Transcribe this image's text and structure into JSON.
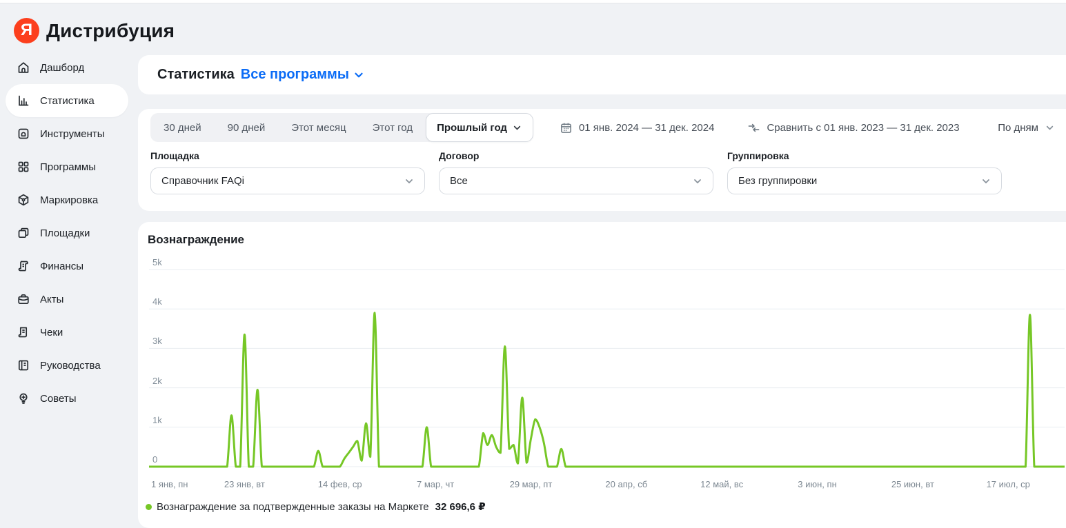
{
  "header": {
    "logo_letter": "Я",
    "title": "Дистрибуция"
  },
  "colors": {
    "brand_red": "#fc3f1d",
    "accent_blue": "#0b6cf6",
    "series_green": "#76c726",
    "card_bg": "#ffffff",
    "page_bg": "#f0f2f5"
  },
  "icons": {
    "logo": "yandex-logo",
    "sidebar": [
      "home-icon",
      "bar-chart-icon",
      "tools-icon",
      "grid-icon",
      "package-icon",
      "stack-icon",
      "scroll-icon",
      "briefcase-icon",
      "receipt-icon",
      "book-icon",
      "lightbulb-icon"
    ],
    "controls": [
      "chevron-down-icon",
      "calendar-icon",
      "compare-arrows-icon"
    ],
    "legend": "series-dot"
  },
  "sidebar": {
    "items": [
      {
        "label": "Дашборд",
        "icon": "home-icon",
        "active": false
      },
      {
        "label": "Статистика",
        "icon": "bar-chart-icon",
        "active": true
      },
      {
        "label": "Инструменты",
        "icon": "tools-icon",
        "active": false
      },
      {
        "label": "Программы",
        "icon": "grid-icon",
        "active": false
      },
      {
        "label": "Маркировка",
        "icon": "package-icon",
        "active": false
      },
      {
        "label": "Площадки",
        "icon": "stack-icon",
        "active": false
      },
      {
        "label": "Финансы",
        "icon": "scroll-icon",
        "active": false
      },
      {
        "label": "Акты",
        "icon": "briefcase-icon",
        "active": false
      },
      {
        "label": "Чеки",
        "icon": "receipt-icon",
        "active": false
      },
      {
        "label": "Руководства",
        "icon": "book-icon",
        "active": false
      },
      {
        "label": "Советы",
        "icon": "lightbulb-icon",
        "active": false
      }
    ]
  },
  "page": {
    "title": "Статистика",
    "program_filter": "Все программы"
  },
  "filters": {
    "periods": [
      "30 дней",
      "90 дней",
      "Этот месяц",
      "Этот год"
    ],
    "period_selected": "Прошлый год",
    "date_range": "01 янв. 2024 — 31 дек. 2024",
    "compare_label": "Сравнить с 01 янв. 2023 — 31 дек. 2023",
    "granularity": "По дням",
    "selects": [
      {
        "label": "Площадка",
        "value": "Справочник FAQi"
      },
      {
        "label": "Договор",
        "value": "Все"
      },
      {
        "label": "Группировка",
        "value": "Без группировки"
      }
    ]
  },
  "chart_data": {
    "type": "line",
    "title": "Вознаграждение",
    "unit": "₽",
    "color": "#76c726",
    "grid": true,
    "legend_position": "bottom",
    "ylim": [
      0,
      5000
    ],
    "yticks": [
      "5k",
      "4k",
      "3k",
      "2k",
      "1k",
      "0"
    ],
    "ytick_values": [
      5000,
      4000,
      3000,
      2000,
      1000,
      0
    ],
    "xticks": [
      "1 янв, пн",
      "23 янв, вт",
      "14 фев, ср",
      "7 мар, чт",
      "29 мар, пт",
      "20 апр, сб",
      "12 май, вс",
      "3 июн, пн",
      "25 июн, вт",
      "17 июл, ср"
    ],
    "xtick_days": [
      0,
      22,
      44,
      66,
      88,
      110,
      132,
      154,
      176,
      198
    ],
    "days_shown": 212,
    "x_start_date": "2024-01-01",
    "series": [
      {
        "name": "Вознаграждение за подтвержденные заказы на Маркете",
        "total_label": "32 696,6 ₽",
        "points_format": "[day_offset_from_jan1, value_rub] — days not listed are 0",
        "points": [
          [
            19,
            1300
          ],
          [
            22,
            3350
          ],
          [
            25,
            1950
          ],
          [
            39,
            400
          ],
          [
            45,
            200
          ],
          [
            46,
            350
          ],
          [
            47,
            500
          ],
          [
            48,
            650
          ],
          [
            49,
            150
          ],
          [
            50,
            1100
          ],
          [
            51,
            250
          ],
          [
            52,
            3900
          ],
          [
            64,
            1000
          ],
          [
            77,
            850
          ],
          [
            78,
            550
          ],
          [
            79,
            800
          ],
          [
            80,
            500
          ],
          [
            81,
            350
          ],
          [
            82,
            3050
          ],
          [
            83,
            450
          ],
          [
            84,
            550
          ],
          [
            85,
            80
          ],
          [
            86,
            1750
          ],
          [
            87,
            100
          ],
          [
            88,
            700
          ],
          [
            89,
            1200
          ],
          [
            90,
            1000
          ],
          [
            91,
            600
          ],
          [
            95,
            450
          ],
          [
            203,
            3850
          ]
        ]
      }
    ]
  }
}
